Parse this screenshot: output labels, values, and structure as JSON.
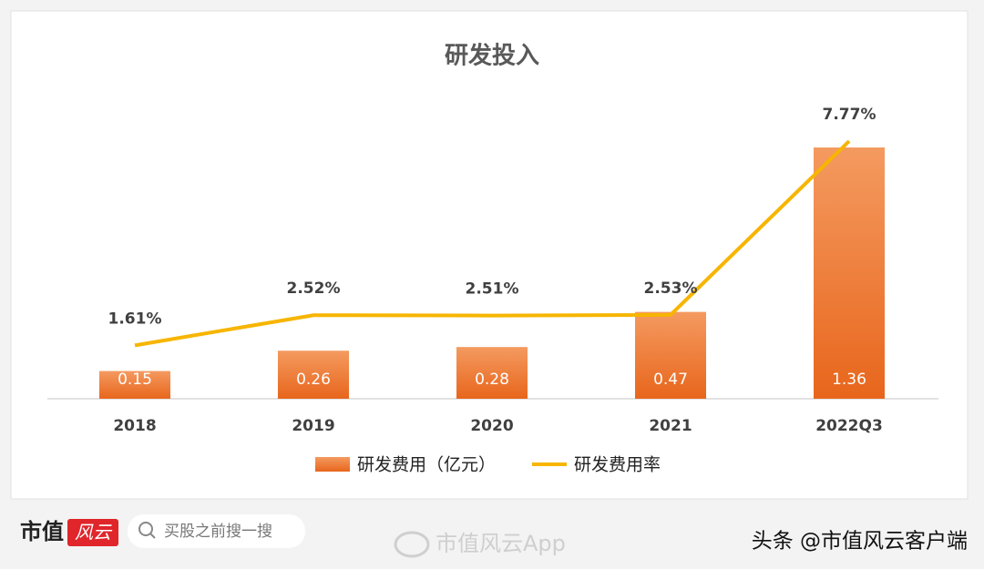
{
  "chart_data": {
    "type": "bar-line",
    "title": "研发投入",
    "categories": [
      "2018",
      "2019",
      "2020",
      "2021",
      "2022Q3"
    ],
    "series": [
      {
        "name": "研发费用（亿元）",
        "type": "bar",
        "color": "#ee7a30",
        "values": [
          0.15,
          0.26,
          0.28,
          0.47,
          1.36
        ]
      },
      {
        "name": "研发费用率",
        "type": "line",
        "color": "#f7b500",
        "values": [
          1.61,
          2.52,
          2.51,
          2.53,
          7.77
        ],
        "value_labels": [
          "1.61%",
          "2.52%",
          "2.51%",
          "2.53%",
          "7.77%"
        ]
      }
    ],
    "legend": "bottom"
  },
  "footer": {
    "logo": "市值",
    "logo_mark": "风云",
    "search": "买股之前搜一搜",
    "watermark": "市值风云App",
    "credit": "头条 @市值风云客户端"
  }
}
